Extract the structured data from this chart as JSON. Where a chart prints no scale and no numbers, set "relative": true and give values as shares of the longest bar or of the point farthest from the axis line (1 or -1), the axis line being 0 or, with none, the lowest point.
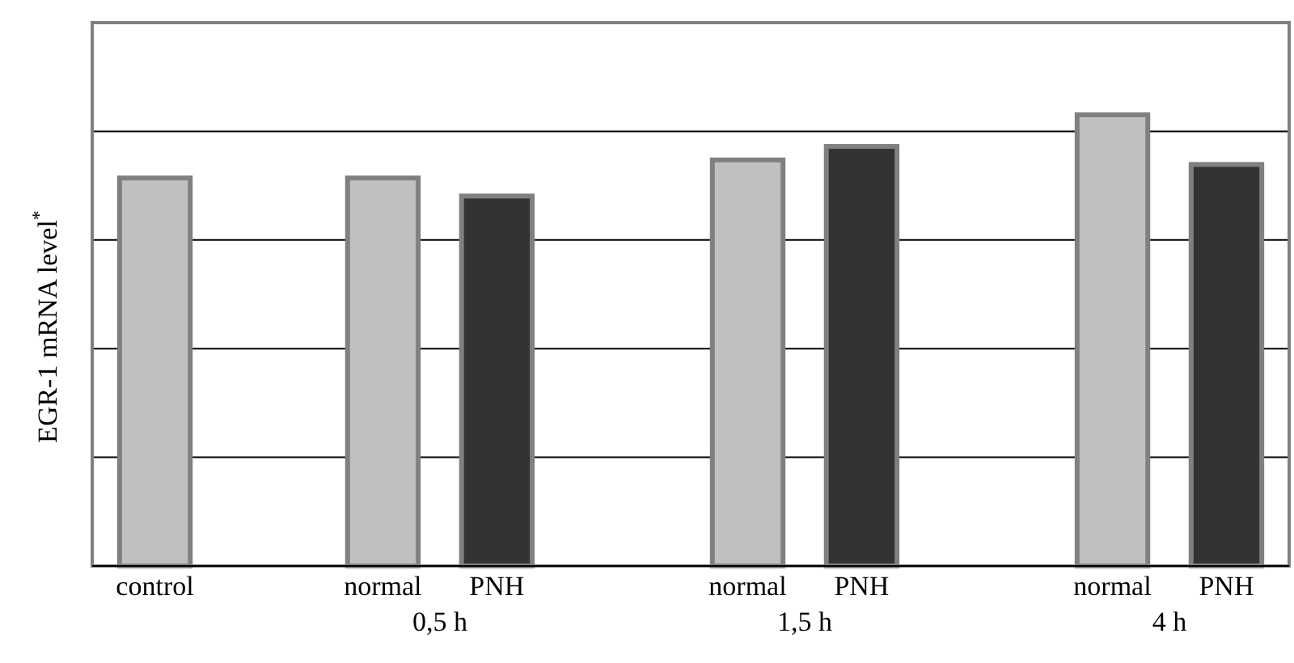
{
  "chart_data": {
    "type": "bar",
    "relative": true,
    "ylabel": "EGR-1 mRNA level$^{*}$",
    "categories": [
      "control",
      "normal",
      "PNH",
      "normal",
      "PNH",
      "normal",
      "PNH"
    ],
    "values": [
      0.86,
      0.86,
      0.82,
      0.9,
      0.93,
      1,
      0.89
    ],
    "colors": [
      "#c0c0c0",
      "#c0c0c0",
      "#333333",
      "#c0c0c0",
      "#333333",
      "#c0c0c0",
      "#333333"
    ],
    "annotations": [
      "0,5 h",
      "1,5 h",
      "4 h"
    ],
    "grid": true
  }
}
